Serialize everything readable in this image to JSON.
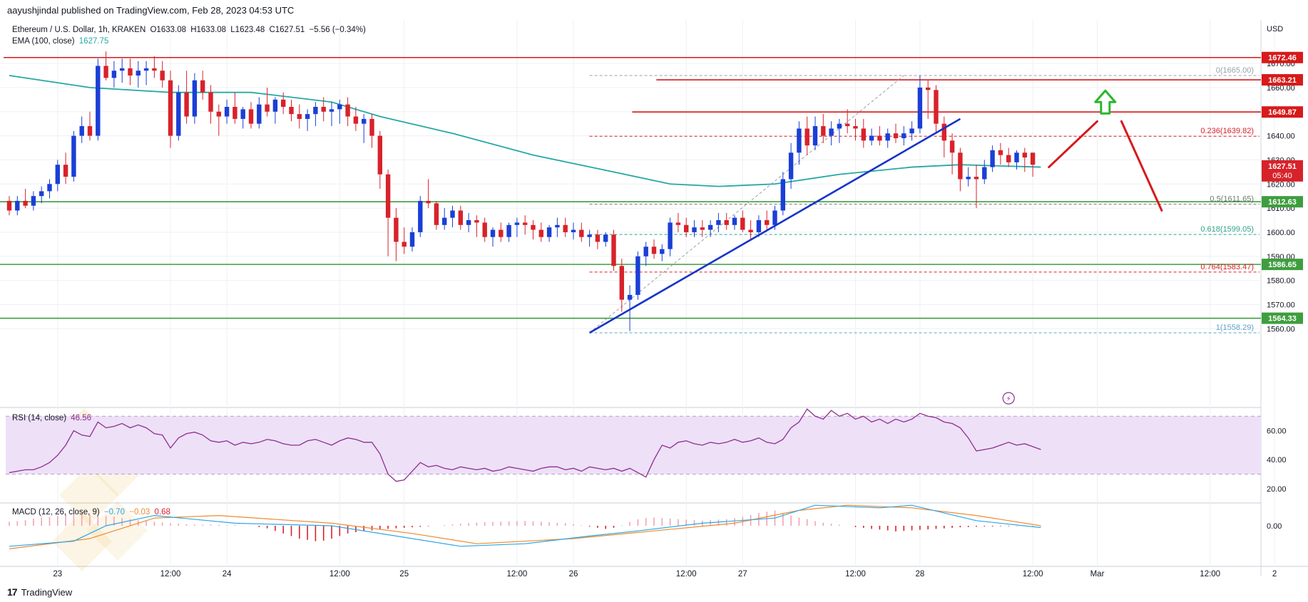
{
  "header": {
    "published": "aayushjindal published on TradingView.com, Feb 28, 2023 04:53 UTC"
  },
  "legend": {
    "symbol": "Ethereum / U.S. Dollar, 1h, KRAKEN",
    "open": "O1633.08",
    "high": "H1633.08",
    "low": "L1623.48",
    "close": "C1627.51",
    "change": "−5.56 (−0.34%)",
    "ema_label": "EMA (100, close)",
    "ema_value": "1627.75",
    "rsi_label": "RSI (14, close)",
    "rsi_value": "46.56",
    "macd_label": "MACD (12, 26, close, 9)",
    "macd_values": [
      "−0.70",
      "−0.03",
      "0.68"
    ]
  },
  "colors": {
    "up": "#1a3fd6",
    "down": "#d8222a",
    "ema": "#26a8a5",
    "resistance": "#d71a1a",
    "support": "#3e9e3e",
    "trendline": "#1633c9",
    "rsi": "#8e2f8e",
    "rsi_band": "#ede0f7",
    "macd_line": "#2ea6e8",
    "signal_line": "#ef8a2f",
    "hist_up": "#f3a3b0",
    "hist_down": "#d8222a",
    "arrow_up": "#2db52d"
  },
  "footer": {
    "brand": "TradingView"
  },
  "chart_data": {
    "type": "candlestick",
    "currency": "USD",
    "price_ylim": [
      1553,
      1678
    ],
    "price_ticks": [
      1560,
      1570,
      1580,
      1590,
      1600,
      1610,
      1620,
      1630,
      1640,
      1650,
      1660,
      1670
    ],
    "x_tick_labels": [
      "23",
      "12:00",
      "24",
      "12:00",
      "25",
      "12:00",
      "26",
      "12:00",
      "27",
      "12:00",
      "28",
      "12:00",
      "Mar",
      "12:00",
      "2"
    ],
    "candles": [
      [
        1613,
        1615,
        1607,
        1609
      ],
      [
        1609,
        1615,
        1607,
        1613
      ],
      [
        1613,
        1618,
        1610,
        1611
      ],
      [
        1611,
        1617,
        1609,
        1615
      ],
      [
        1615,
        1619,
        1612,
        1617
      ],
      [
        1617,
        1622,
        1614,
        1620
      ],
      [
        1620,
        1630,
        1617,
        1628
      ],
      [
        1628,
        1633,
        1620,
        1623
      ],
      [
        1623,
        1642,
        1621,
        1640
      ],
      [
        1640,
        1648,
        1637,
        1644
      ],
      [
        1644,
        1650,
        1638,
        1640
      ],
      [
        1640,
        1672,
        1638,
        1669
      ],
      [
        1669,
        1675,
        1663,
        1664
      ],
      [
        1664,
        1671,
        1660,
        1667
      ],
      [
        1667,
        1672,
        1662,
        1668
      ],
      [
        1668,
        1672,
        1661,
        1665
      ],
      [
        1665,
        1671,
        1660,
        1667
      ],
      [
        1667,
        1671,
        1661,
        1668
      ],
      [
        1668,
        1673,
        1664,
        1667
      ],
      [
        1667,
        1671,
        1660,
        1663
      ],
      [
        1663,
        1667,
        1635,
        1640
      ],
      [
        1640,
        1661,
        1638,
        1658
      ],
      [
        1658,
        1667,
        1645,
        1648
      ],
      [
        1648,
        1666,
        1645,
        1663
      ],
      [
        1663,
        1667,
        1655,
        1658
      ],
      [
        1658,
        1661,
        1645,
        1650
      ],
      [
        1650,
        1653,
        1640,
        1648
      ],
      [
        1648,
        1655,
        1645,
        1652
      ],
      [
        1652,
        1658,
        1645,
        1647
      ],
      [
        1647,
        1652,
        1643,
        1651
      ],
      [
        1651,
        1654,
        1643,
        1645
      ],
      [
        1645,
        1656,
        1643,
        1653
      ],
      [
        1653,
        1660,
        1648,
        1650
      ],
      [
        1650,
        1656,
        1645,
        1655
      ],
      [
        1655,
        1658,
        1649,
        1652
      ],
      [
        1652,
        1655,
        1646,
        1649
      ],
      [
        1649,
        1653,
        1643,
        1647
      ],
      [
        1647,
        1651,
        1642,
        1649
      ],
      [
        1649,
        1654,
        1644,
        1652
      ],
      [
        1652,
        1656,
        1646,
        1650
      ],
      [
        1650,
        1654,
        1644,
        1651
      ],
      [
        1651,
        1655,
        1645,
        1653
      ],
      [
        1653,
        1656,
        1644,
        1648
      ],
      [
        1648,
        1652,
        1642,
        1645
      ],
      [
        1645,
        1649,
        1637,
        1647
      ],
      [
        1647,
        1649,
        1635,
        1640
      ],
      [
        1640,
        1642,
        1618,
        1624
      ],
      [
        1624,
        1626,
        1590,
        1606
      ],
      [
        1606,
        1610,
        1588,
        1596
      ],
      [
        1596,
        1602,
        1591,
        1594
      ],
      [
        1594,
        1602,
        1592,
        1600
      ],
      [
        1600,
        1615,
        1598,
        1613
      ],
      [
        1613,
        1622,
        1610,
        1612
      ],
      [
        1612,
        1613,
        1601,
        1603
      ],
      [
        1603,
        1610,
        1601,
        1606
      ],
      [
        1606,
        1611,
        1602,
        1609
      ],
      [
        1609,
        1611,
        1601,
        1603
      ],
      [
        1603,
        1608,
        1600,
        1605
      ],
      [
        1605,
        1607,
        1598,
        1604
      ],
      [
        1604,
        1606,
        1596,
        1598
      ],
      [
        1598,
        1602,
        1594,
        1601
      ],
      [
        1601,
        1604,
        1596,
        1598
      ],
      [
        1598,
        1604,
        1596,
        1603
      ],
      [
        1603,
        1606,
        1598,
        1604
      ],
      [
        1604,
        1607,
        1599,
        1603
      ],
      [
        1603,
        1605,
        1597,
        1601
      ],
      [
        1601,
        1604,
        1596,
        1598
      ],
      [
        1598,
        1603,
        1596,
        1602
      ],
      [
        1602,
        1606,
        1598,
        1603
      ],
      [
        1603,
        1606,
        1598,
        1600
      ],
      [
        1600,
        1604,
        1597,
        1601
      ],
      [
        1601,
        1604,
        1596,
        1598
      ],
      [
        1598,
        1601,
        1594,
        1599
      ],
      [
        1599,
        1601,
        1593,
        1596
      ],
      [
        1596,
        1600,
        1594,
        1599
      ],
      [
        1599,
        1601,
        1584,
        1586
      ],
      [
        1586,
        1589,
        1567,
        1572
      ],
      [
        1572,
        1578,
        1559,
        1574
      ],
      [
        1574,
        1592,
        1572,
        1590
      ],
      [
        1590,
        1596,
        1586,
        1594
      ],
      [
        1594,
        1597,
        1589,
        1591
      ],
      [
        1591,
        1595,
        1588,
        1593
      ],
      [
        1593,
        1606,
        1590,
        1604
      ],
      [
        1604,
        1608,
        1600,
        1603
      ],
      [
        1603,
        1606,
        1598,
        1600
      ],
      [
        1600,
        1605,
        1598,
        1602
      ],
      [
        1602,
        1605,
        1598,
        1601
      ],
      [
        1601,
        1605,
        1598,
        1603
      ],
      [
        1603,
        1608,
        1600,
        1605
      ],
      [
        1605,
        1608,
        1601,
        1603
      ],
      [
        1603,
        1607,
        1601,
        1606
      ],
      [
        1606,
        1609,
        1600,
        1601
      ],
      [
        1601,
        1605,
        1597,
        1600
      ],
      [
        1600,
        1607,
        1598,
        1605
      ],
      [
        1605,
        1609,
        1601,
        1603
      ],
      [
        1603,
        1611,
        1601,
        1609
      ],
      [
        1609,
        1625,
        1607,
        1622
      ],
      [
        1622,
        1637,
        1618,
        1633
      ],
      [
        1633,
        1646,
        1628,
        1643
      ],
      [
        1643,
        1648,
        1632,
        1636
      ],
      [
        1636,
        1648,
        1634,
        1644
      ],
      [
        1644,
        1649,
        1637,
        1640
      ],
      [
        1640,
        1646,
        1636,
        1643
      ],
      [
        1643,
        1647,
        1637,
        1645
      ],
      [
        1645,
        1651,
        1641,
        1644
      ],
      [
        1644,
        1647,
        1638,
        1643
      ],
      [
        1643,
        1647,
        1635,
        1638
      ],
      [
        1638,
        1643,
        1636,
        1640
      ],
      [
        1640,
        1644,
        1636,
        1638
      ],
      [
        1638,
        1643,
        1635,
        1641
      ],
      [
        1641,
        1645,
        1637,
        1639
      ],
      [
        1639,
        1644,
        1636,
        1641
      ],
      [
        1641,
        1646,
        1638,
        1643
      ],
      [
        1643,
        1665,
        1641,
        1660
      ],
      [
        1660,
        1663,
        1647,
        1659
      ],
      [
        1659,
        1661,
        1641,
        1645
      ],
      [
        1645,
        1648,
        1631,
        1638
      ],
      [
        1638,
        1641,
        1624,
        1633
      ],
      [
        1633,
        1635,
        1617,
        1622
      ],
      [
        1622,
        1627,
        1619,
        1623
      ],
      [
        1623,
        1628,
        1610,
        1622
      ],
      [
        1622,
        1630,
        1620,
        1627
      ],
      [
        1627,
        1636,
        1625,
        1634
      ],
      [
        1634,
        1637,
        1628,
        1632
      ],
      [
        1632,
        1635,
        1627,
        1629
      ],
      [
        1629,
        1634,
        1626,
        1633
      ],
      [
        1633,
        1635,
        1625,
        1631
      ],
      [
        1633,
        1633,
        1623,
        1628
      ]
    ],
    "ema100": [
      [
        0,
        1665
      ],
      [
        10,
        1660
      ],
      [
        20,
        1658
      ],
      [
        30,
        1658
      ],
      [
        40,
        1654
      ],
      [
        46,
        1648
      ],
      [
        55,
        1641
      ],
      [
        65,
        1632
      ],
      [
        75,
        1625
      ],
      [
        82,
        1620
      ],
      [
        88,
        1619
      ],
      [
        95,
        1620
      ],
      [
        103,
        1624
      ],
      [
        112,
        1627
      ],
      [
        118,
        1628
      ],
      [
        128,
        1627
      ]
    ],
    "resistance_lines": [
      {
        "price": 1672.46,
        "label": "1672.46",
        "from_candle": 0
      },
      {
        "price": 1663.21,
        "label": "1663.21",
        "from_candle": 81
      },
      {
        "price": 1649.87,
        "label": "1649.87",
        "from_candle": 78
      }
    ],
    "support_lines": [
      {
        "price": 1612.63,
        "label": "1612.63",
        "from_candle": 0
      },
      {
        "price": 1586.65,
        "label": "1586.65",
        "from_candle": 0
      },
      {
        "price": 1564.33,
        "label": "1564.33",
        "from_candle": 0
      }
    ],
    "current_price": {
      "label": "1627.51",
      "countdown": "05:40"
    },
    "fibonacci": [
      {
        "ratio": 0,
        "price": 1665.0,
        "label": "0(1665.00)"
      },
      {
        "ratio": 0.236,
        "price": 1639.82,
        "label": "0.236(1639.82)"
      },
      {
        "ratio": 0.5,
        "price": 1611.65,
        "label": "0.5(1611.65)"
      },
      {
        "ratio": 0.618,
        "price": 1599.05,
        "label": "0.618(1599.05)"
      },
      {
        "ratio": 0.764,
        "price": 1583.47,
        "label": "0.764(1583.47)"
      },
      {
        "ratio": 1,
        "price": 1558.29,
        "label": "1(1558.29)"
      }
    ],
    "trendline": {
      "from": [
        72,
        1558.29
      ],
      "to": [
        118,
        1647
      ]
    },
    "rsi": {
      "ylim": [
        13,
        78
      ],
      "band": [
        30,
        70
      ],
      "ticks": [
        20,
        40,
        60
      ],
      "values": [
        31,
        32,
        33,
        33,
        35,
        38,
        43,
        50,
        60,
        57,
        56,
        66,
        62,
        63,
        65,
        62,
        64,
        62,
        58,
        57,
        48,
        55,
        58,
        59,
        57,
        53,
        52,
        53,
        50,
        52,
        51,
        52,
        54,
        53,
        51,
        50,
        50,
        53,
        54,
        52,
        50,
        53,
        55,
        54,
        52,
        52,
        44,
        30,
        25,
        26,
        32,
        38,
        35,
        36,
        34,
        33,
        35,
        34,
        33,
        34,
        32,
        33,
        35,
        34,
        33,
        32,
        34,
        35,
        35,
        33,
        34,
        32,
        35,
        34,
        33,
        34,
        32,
        34,
        31,
        28,
        40,
        50,
        48,
        52,
        53,
        51,
        50,
        52,
        51,
        52,
        54,
        52,
        53,
        55,
        52,
        51,
        54,
        62,
        66,
        75,
        70,
        68,
        74,
        70,
        72,
        68,
        70,
        66,
        68,
        65,
        68,
        66,
        68,
        72,
        70,
        69,
        66,
        65,
        62,
        55,
        46,
        47,
        48,
        50,
        52,
        50,
        51,
        49,
        47
      ]
    },
    "macd": {
      "zero_label": "0.00",
      "hist": [
        1.6,
        1.8,
        2.2,
        2.8,
        3.2,
        3.5,
        3.8,
        4.5,
        5.0,
        4.8,
        4.2,
        4.0,
        3.8,
        3.6,
        3.0,
        2.6,
        2.2,
        2.0,
        1.6,
        1.3,
        1.0,
        0.8,
        0.6,
        0.5,
        0.4,
        0.5,
        0.4,
        0.2,
        0.3,
        0.1,
        0.0,
        -0.5,
        -1.0,
        -2.0,
        -3.0,
        -4.0,
        -5.0,
        -5.5,
        -6.0,
        -5.8,
        -5.0,
        -4.0,
        -3.0,
        -2.5,
        -2.0,
        -1.8,
        -1.5,
        -1.2,
        -1.0,
        -0.8,
        -0.6,
        -0.4,
        -0.2,
        0.0,
        0.3,
        0.5,
        0.8,
        1.0,
        1.2,
        1.4,
        1.5,
        1.6,
        1.7,
        1.8,
        1.9,
        1.8,
        1.6,
        1.4,
        1.2,
        1.0,
        0.6,
        0.2,
        -0.3,
        -0.8,
        -1.2,
        -0.8,
        0.2,
        1.5,
        2.5,
        3.0,
        3.2,
        3.0,
        2.8,
        2.6,
        2.4,
        2.2,
        2.0,
        2.2,
        2.4,
        2.6,
        3.0,
        3.5,
        4.2,
        5.0,
        5.5,
        6.0,
        5.0,
        4.0,
        3.2,
        2.6,
        1.8,
        1.2,
        0.8,
        0.4,
        0.0,
        -0.5,
        -0.8,
        -1.2,
        -1.5,
        -1.8,
        -2.2,
        -2.0,
        -1.8,
        -1.6,
        -1.4,
        -1.2,
        -1.0,
        -0.8,
        -0.6,
        -0.5,
        -0.4,
        -0.3,
        -0.3,
        -0.2,
        -0.2,
        -0.1,
        -0.1,
        -0.1,
        -0.1
      ],
      "macd_line": [
        [
          0,
          -8
        ],
        [
          8,
          -6
        ],
        [
          12,
          0
        ],
        [
          18,
          4
        ],
        [
          28,
          1
        ],
        [
          40,
          0
        ],
        [
          48,
          -4
        ],
        [
          56,
          -8
        ],
        [
          64,
          -7
        ],
        [
          72,
          -4
        ],
        [
          78,
          -2
        ],
        [
          86,
          1
        ],
        [
          95,
          3
        ],
        [
          100,
          8
        ],
        [
          108,
          7
        ],
        [
          112,
          8
        ],
        [
          120,
          2
        ],
        [
          128,
          -0.7
        ]
      ],
      "signal_line": [
        [
          0,
          -9
        ],
        [
          10,
          -5
        ],
        [
          18,
          3
        ],
        [
          26,
          4
        ],
        [
          40,
          1
        ],
        [
          50,
          -3
        ],
        [
          58,
          -7
        ],
        [
          70,
          -5
        ],
        [
          80,
          -2
        ],
        [
          90,
          1
        ],
        [
          98,
          6
        ],
        [
          104,
          8
        ],
        [
          112,
          7
        ],
        [
          120,
          4
        ],
        [
          128,
          0
        ]
      ]
    },
    "annotations": [
      {
        "type": "path",
        "kind": "projected-up",
        "points": [
          [
            129,
            1627
          ],
          [
            135,
            1646
          ]
        ]
      },
      {
        "type": "arrow",
        "kind": "green-up-arrow",
        "at": [
          136,
          1654
        ]
      },
      {
        "type": "path",
        "kind": "projected-down",
        "points": [
          [
            138,
            1646
          ],
          [
            143,
            1609
          ]
        ]
      }
    ]
  }
}
